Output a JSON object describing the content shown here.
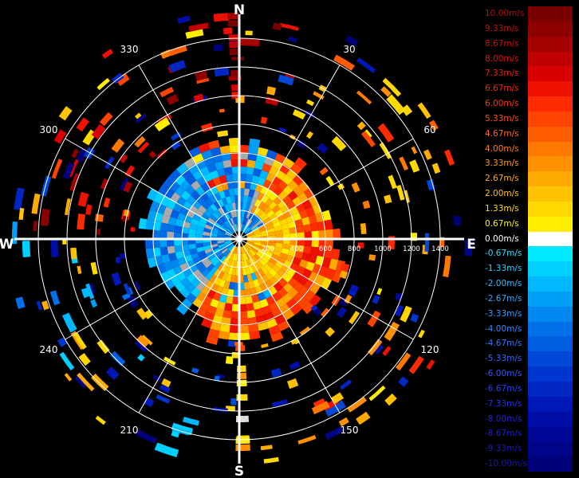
{
  "chart_data": {
    "type": "polar-ppi",
    "directions": {
      "north": "N",
      "east": "E",
      "south": "S",
      "west": "W"
    },
    "azimuth_ticks": [
      "30",
      "60",
      "120",
      "150",
      "210",
      "240",
      "300",
      "330"
    ],
    "azimuth_values": [
      30,
      60,
      120,
      150,
      210,
      240,
      300,
      330
    ],
    "range_ticks": [
      "200",
      "400",
      "600",
      "800",
      "1000",
      "1200",
      "1400"
    ],
    "range_values": [
      200,
      400,
      600,
      800,
      1000,
      1200,
      1400
    ],
    "range_max": 1400,
    "velocity_unit": "m/s",
    "colorbar": [
      {
        "label": "10.00m/s",
        "value": 10.0,
        "color": "#7a0000",
        "text": "#b01010"
      },
      {
        "label": "9.33m/s",
        "value": 9.33,
        "color": "#8c0000",
        "text": "#c01010"
      },
      {
        "label": "8.67m/s",
        "value": 8.67,
        "color": "#a40000",
        "text": "#d01010"
      },
      {
        "label": "8.00m/s",
        "value": 8.0,
        "color": "#be0000",
        "text": "#e01010"
      },
      {
        "label": "7.33m/s",
        "value": 7.33,
        "color": "#d80000",
        "text": "#ee1a10"
      },
      {
        "label": "6.67m/s",
        "value": 6.67,
        "color": "#ee1100",
        "text": "#f52a10"
      },
      {
        "label": "6.00m/s",
        "value": 6.0,
        "color": "#ff2a00",
        "text": "#ff3a10"
      },
      {
        "label": "5.33m/s",
        "value": 5.33,
        "color": "#ff4400",
        "text": "#ff5015"
      },
      {
        "label": "4.67m/s",
        "value": 4.67,
        "color": "#ff5e00",
        "text": "#ff6a15"
      },
      {
        "label": "4.00m/s",
        "value": 4.0,
        "color": "#ff7800",
        "text": "#ff8015"
      },
      {
        "label": "3.33m/s",
        "value": 3.33,
        "color": "#ff9000",
        "text": "#ff9a15"
      },
      {
        "label": "2.67m/s",
        "value": 2.67,
        "color": "#ffaa00",
        "text": "#ffb015"
      },
      {
        "label": "2.00m/s",
        "value": 2.0,
        "color": "#ffc200",
        "text": "#ffc815"
      },
      {
        "label": "1.33m/s",
        "value": 1.33,
        "color": "#ffd800",
        "text": "#ffdc15"
      },
      {
        "label": "0.67m/s",
        "value": 0.67,
        "color": "#ffee00",
        "text": "#fff015"
      },
      {
        "label": "0.00m/s",
        "value": 0.0,
        "color": "#ffffff",
        "text": "#ffffff"
      },
      {
        "label": "-0.67m/s",
        "value": -0.67,
        "color": "#00eaff",
        "text": "#33ddff"
      },
      {
        "label": "-1.33m/s",
        "value": -1.33,
        "color": "#00d0ff",
        "text": "#33ccff"
      },
      {
        "label": "-2.00m/s",
        "value": -2.0,
        "color": "#00b8ff",
        "text": "#33bbff"
      },
      {
        "label": "-2.67m/s",
        "value": -2.67,
        "color": "#00a0f8",
        "text": "#33aaff"
      },
      {
        "label": "-3.33m/s",
        "value": -3.33,
        "color": "#0088f0",
        "text": "#3399ff"
      },
      {
        "label": "-4.00m/s",
        "value": -4.0,
        "color": "#0070e8",
        "text": "#3388ff"
      },
      {
        "label": "-4.67m/s",
        "value": -4.67,
        "color": "#005ce0",
        "text": "#3377ff"
      },
      {
        "label": "-5.33m/s",
        "value": -5.33,
        "color": "#0048d8",
        "text": "#3366ff"
      },
      {
        "label": "-6.00m/s",
        "value": -6.0,
        "color": "#0036d0",
        "text": "#3355ff"
      },
      {
        "label": "-6.67m/s",
        "value": -6.67,
        "color": "#0026c4",
        "text": "#2244ff"
      },
      {
        "label": "-7.33m/s",
        "value": -7.33,
        "color": "#0018b8",
        "text": "#2233ee"
      },
      {
        "label": "-8.00m/s",
        "value": -8.0,
        "color": "#000ea8",
        "text": "#2222dd"
      },
      {
        "label": "-8.67m/s",
        "value": -8.67,
        "color": "#000898",
        "text": "#2020cc"
      },
      {
        "label": "-9.33m/s",
        "value": -9.33,
        "color": "#000488",
        "text": "#1c1cbb"
      },
      {
        "label": "-10.00m/s",
        "value": -10.0,
        "color": "#000078",
        "text": "#1818aa"
      }
    ]
  }
}
